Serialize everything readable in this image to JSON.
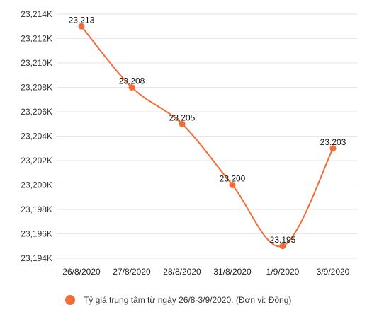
{
  "chart_data": {
    "type": "line",
    "categories": [
      "26/8/2020",
      "27/8/2020",
      "28/8/2020",
      "31/8/2020",
      "1/9/2020",
      "3/9/2020"
    ],
    "series": [
      {
        "name": "Tỷ giá trung tâm từ ngày 26/8-3/9/2020. (Đơn vị: Đồng)",
        "values": [
          23213,
          23208,
          23205,
          23200,
          23195,
          23203
        ],
        "data_labels": [
          "23.213",
          "23.208",
          "23.205",
          "23.200",
          "23.195",
          "23.203"
        ],
        "color": "#f26b38"
      }
    ],
    "y_ticks": [
      "23,194K",
      "23,196K",
      "23,198K",
      "23,200K",
      "23,202K",
      "23,204K",
      "23,206K",
      "23,208K",
      "23,210K",
      "23,212K",
      "23,214K"
    ],
    "ylim": [
      23194,
      23214
    ],
    "grid": true,
    "legend": "bottom",
    "title": "",
    "xlabel": "",
    "ylabel": ""
  }
}
